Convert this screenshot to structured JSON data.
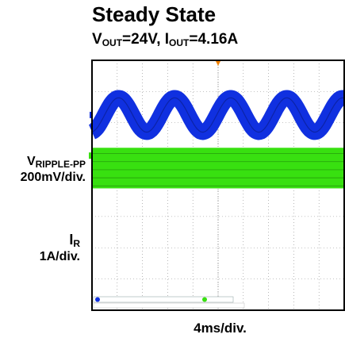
{
  "header": {
    "title": "Steady State",
    "subtitle_v": "V",
    "subtitle_v_sub": "OUT",
    "subtitle_v_val": "=24V, I",
    "subtitle_i_sub": "OUT",
    "subtitle_i_val": "=4.16A"
  },
  "channels": {
    "ch1_name": "V",
    "ch1_name_sub": "RIPPLE-PP",
    "ch1_scale": "200mV/div.",
    "ch2_name": "I",
    "ch2_name_sub": "R",
    "ch2_scale": "1A/div."
  },
  "timebase": {
    "label": "4ms/div."
  },
  "colors": {
    "ch1": "#1030e0",
    "ch2": "#38e010",
    "grid": "#8a8a8a",
    "frame": "#000000",
    "trigger": "#f08000"
  },
  "chart_data": {
    "type": "line",
    "title": "Steady State",
    "series": [
      {
        "name": "VRIPPLE-PP",
        "scale": "200mV/div.",
        "shape": "sinusoid",
        "cycles_visible": 4.5,
        "amplitude_div": 0.55,
        "band_width_div": 0.5
      },
      {
        "name": "IR",
        "scale": "1A/div.",
        "shape": "noisy band",
        "band_width_div": 1.3
      }
    ],
    "xlabel": "4ms/div.",
    "x_divisions": 10,
    "y_divisions": 8,
    "grid": true
  }
}
